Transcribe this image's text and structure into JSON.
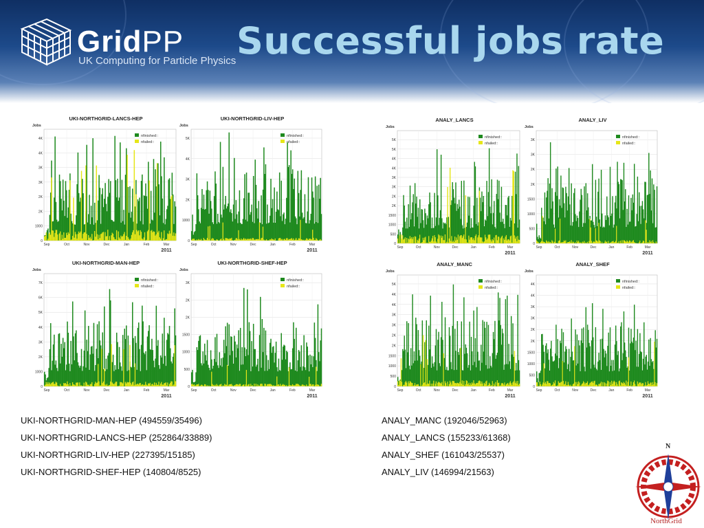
{
  "header": {
    "logo_main": "Grid",
    "logo_pp": "PP",
    "logo_subtitle": "UK Computing for Particle Physics",
    "slide_title": "Successful jobs rate"
  },
  "legend": {
    "finished": "nfinished::",
    "failed": "nfailed::"
  },
  "colors": {
    "finished": "#1f8a1f",
    "failed": "#e6e619",
    "title": "#a9d7ee",
    "header_dark": "#0f2f63"
  },
  "axis_common": {
    "ylabel": "Jobs",
    "x_ticks": [
      "Sep",
      "Oct",
      "Nov",
      "Dec",
      "Jan",
      "Feb",
      "Mar"
    ],
    "year": "2011"
  },
  "chart_data": [
    {
      "type": "bar",
      "title": "UKI-NORTHGRID-LANCS-HEP",
      "ylabel": "Jobs",
      "y_ticks": [
        "0",
        "1000",
        "2K",
        "2K",
        "3K",
        "3K",
        "4K",
        "4K"
      ],
      "ymax": 4500,
      "seed": 3,
      "series": [
        {
          "name": "nfinished::",
          "approx_peak": 4300
        },
        {
          "name": "nfailed::",
          "approx_peak": 3800
        }
      ]
    },
    {
      "type": "bar",
      "title": "UKI-NORTHGRID-LIV-HEP",
      "ylabel": "Jobs",
      "y_ticks": [
        "0",
        "1000",
        "2K",
        "3K",
        "4K",
        "5K"
      ],
      "ymax": 5600,
      "seed": 7,
      "series": [
        {
          "name": "nfinished::",
          "approx_peak": 5500
        },
        {
          "name": "nfailed::",
          "approx_peak": 1200
        }
      ]
    },
    {
      "type": "bar",
      "title": "UKI-NORTHGRID-MAN-HEP",
      "ylabel": "Jobs",
      "y_ticks": [
        "0",
        "1000",
        "2K",
        "3K",
        "4K",
        "5K",
        "6K",
        "7K"
      ],
      "ymax": 7800,
      "seed": 11,
      "series": [
        {
          "name": "nfinished::",
          "approx_peak": 7000
        },
        {
          "name": "nfailed::",
          "approx_peak": 3000
        }
      ]
    },
    {
      "type": "bar",
      "title": "UKI-NORTHGRID-SHEF-HEP",
      "ylabel": "Jobs",
      "y_ticks": [
        "0",
        "500",
        "1000",
        "1500",
        "2K",
        "2K",
        "3K"
      ],
      "ymax": 3500,
      "seed": 5,
      "series": [
        {
          "name": "nfinished::",
          "approx_peak": 3100
        },
        {
          "name": "nfailed::",
          "approx_peak": 700
        }
      ]
    },
    {
      "type": "bar",
      "title": "ANALY_LANCS",
      "ylabel": "Jobs",
      "y_ticks": [
        "0",
        "500",
        "1000",
        "1500",
        "2K",
        "2K",
        "3K",
        "3K",
        "4K",
        "4K",
        "5K",
        "5K"
      ],
      "ymax": 5800,
      "seed": 13,
      "series": [
        {
          "name": "nfinished::",
          "approx_peak": 5100
        },
        {
          "name": "nfailed::",
          "approx_peak": 3900
        }
      ]
    },
    {
      "type": "bar",
      "title": "ANALY_LIV",
      "ylabel": "Jobs",
      "y_ticks": [
        "0",
        "500",
        "1000",
        "1500",
        "2K",
        "2K",
        "3K",
        "3K"
      ],
      "ymax": 3700,
      "seed": 17,
      "series": [
        {
          "name": "nfinished::",
          "approx_peak": 3400
        },
        {
          "name": "nfailed::",
          "approx_peak": 900
        }
      ]
    },
    {
      "type": "bar",
      "title": "ANALY_MANC",
      "ylabel": "Jobs",
      "y_ticks": [
        "0",
        "500",
        "1000",
        "1500",
        "2K",
        "2K",
        "3K",
        "3K",
        "4K",
        "4K",
        "5K"
      ],
      "ymax": 5400,
      "seed": 19,
      "series": [
        {
          "name": "nfinished::",
          "approx_peak": 5000
        },
        {
          "name": "nfailed::",
          "approx_peak": 2500
        }
      ]
    },
    {
      "type": "bar",
      "title": "ANALY_SHEF",
      "ylabel": "Jobs",
      "y_ticks": [
        "0",
        "500",
        "1000",
        "1500",
        "2K",
        "2K",
        "3K",
        "3K",
        "4K",
        "4K"
      ],
      "ymax": 4900,
      "seed": 23,
      "series": [
        {
          "name": "nfinished::",
          "approx_peak": 4400
        },
        {
          "name": "nfailed::",
          "approx_peak": 2200
        }
      ]
    }
  ],
  "stats_left": [
    "UKI-NORTHGRID-MAN-HEP   (494559/35496)",
    "UKI-NORTHGRID-LANCS-HEP   (252864/33889)",
    "UKI-NORTHGRID-LIV-HEP   (227395/15185)",
    "UKI-NORTHGRID-SHEF-HEP   (140804/8525)"
  ],
  "stats_right": [
    "ANALY_MANC   (192046/52963)",
    "ANALY_LANCS   (155233/61368)",
    "ANALY_SHEF   (161043/25537)",
    "ANALY_LIV   (146994/21563)"
  ],
  "compass": {
    "north_label": "N",
    "caption": "NorthGrid"
  }
}
